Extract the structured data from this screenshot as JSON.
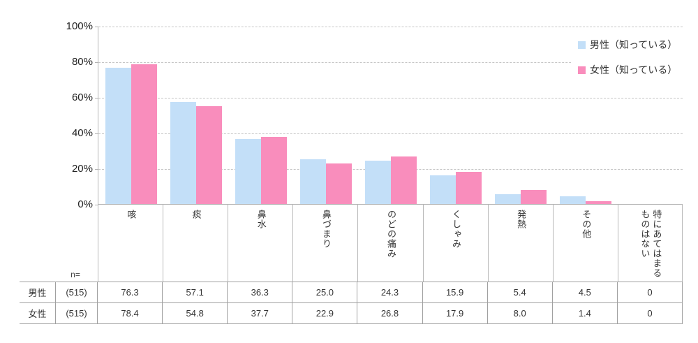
{
  "chart_data": {
    "type": "bar",
    "categories": [
      "咳",
      "痰",
      "鼻水",
      "鼻づまり",
      "のどの痛み",
      "くしゃみ",
      "発熱",
      "その他",
      "特にあてはまる\nものはない"
    ],
    "series": [
      {
        "name": "男性（知っている）",
        "n": "(515)",
        "values": [
          76.3,
          57.1,
          36.3,
          25.0,
          24.3,
          15.9,
          5.4,
          4.5,
          0
        ],
        "color": "#c3dff8"
      },
      {
        "name": "女性（知っている）",
        "n": "(515)",
        "values": [
          78.4,
          54.8,
          37.7,
          22.9,
          26.8,
          17.9,
          8.0,
          1.4,
          0
        ],
        "color": "#f98dbc"
      }
    ],
    "ylim": [
      0,
      100
    ],
    "yticks": [
      "100%",
      "80%",
      "60%",
      "40%",
      "20%",
      "0%"
    ],
    "grid": "horizontal-dashed",
    "legend_position": "top-right"
  },
  "legend": {
    "items": [
      {
        "label": "男性（知っている）",
        "color": "#c3dff8"
      },
      {
        "label": "女性（知っている）",
        "color": "#f98dbc"
      }
    ]
  },
  "table": {
    "n_label": "n=",
    "rows": [
      {
        "label": "男性",
        "n": "(515)",
        "values": [
          "76.3",
          "57.1",
          "36.3",
          "25.0",
          "24.3",
          "15.9",
          "5.4",
          "4.5",
          "0"
        ]
      },
      {
        "label": "女性",
        "n": "(515)",
        "values": [
          "78.4",
          "54.8",
          "37.7",
          "22.9",
          "26.8",
          "17.9",
          "8.0",
          "1.4",
          "0"
        ]
      }
    ]
  },
  "colors": {
    "male_bar": "#c3dff8",
    "female_bar": "#f98dbc",
    "gridline": "#c6c6c6",
    "axis": "#b3b3b3",
    "table_border": "#a0a0a0"
  }
}
